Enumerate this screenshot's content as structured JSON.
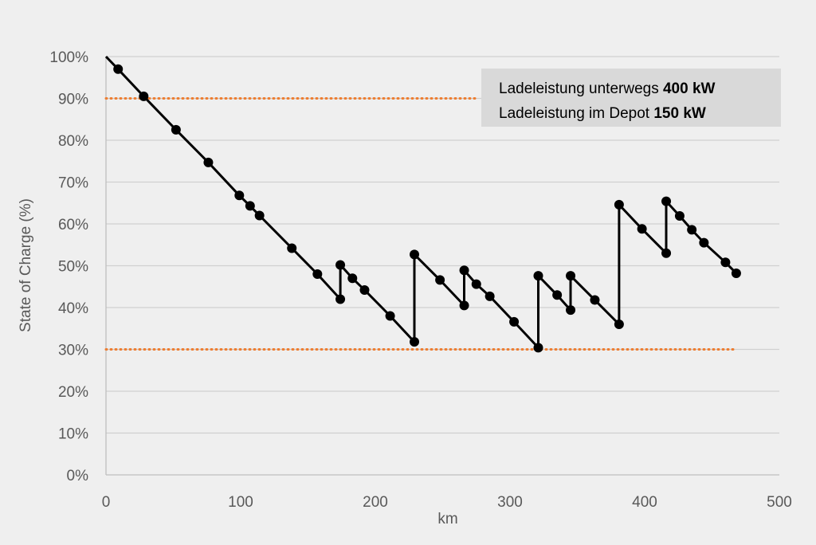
{
  "chart_data": {
    "type": "line",
    "xlabel": "km",
    "ylabel": "State of Charge (%)",
    "xlim": [
      0,
      500
    ],
    "ylim": [
      0,
      100
    ],
    "x_ticks": [
      "0",
      "100",
      "200",
      "300",
      "400",
      "500"
    ],
    "y_ticks": [
      "0%",
      "10%",
      "20%",
      "30%",
      "40%",
      "50%",
      "60%",
      "70%",
      "80%",
      "90%",
      "100%"
    ],
    "grid": true,
    "legend": {
      "placement": "top-right",
      "line1_text": "Ladeleistung unterwegs ",
      "line1_value": "400 kW",
      "line2_text": "Ladeleistung im Depot ",
      "line2_value": "150 kW"
    },
    "reference_lines": [
      {
        "y": 90,
        "x_range": [
          0,
          276
        ],
        "style": "dotted",
        "color": "#ed7d31"
      },
      {
        "y": 30,
        "x_range": [
          0,
          466
        ],
        "style": "dotted",
        "color": "#ed7d31"
      }
    ],
    "series": [
      {
        "color": "#000000",
        "line": [
          [
            0,
            100
          ],
          [
            9,
            97
          ],
          [
            28,
            90.5
          ],
          [
            52,
            82.5
          ],
          [
            76,
            74.7
          ],
          [
            99,
            66.8
          ],
          [
            107,
            64.3
          ],
          [
            114,
            62
          ],
          [
            138,
            54.2
          ],
          [
            157,
            48
          ],
          [
            174,
            42
          ],
          [
            174,
            50.2
          ],
          [
            183,
            47
          ],
          [
            192,
            44.2
          ],
          [
            211,
            38
          ],
          [
            229,
            31.8
          ],
          [
            229,
            52.7
          ],
          [
            248,
            46.6
          ],
          [
            266,
            40.5
          ],
          [
            266,
            48.9
          ],
          [
            275,
            45.6
          ],
          [
            285,
            42.7
          ],
          [
            303,
            36.6
          ],
          [
            321,
            30.4
          ],
          [
            321,
            47.6
          ],
          [
            335,
            43
          ],
          [
            345,
            39.4
          ],
          [
            345,
            47.6
          ],
          [
            363,
            41.8
          ],
          [
            381,
            36
          ],
          [
            381,
            64.6
          ],
          [
            398,
            58.8
          ],
          [
            416,
            53
          ],
          [
            416,
            65.4
          ],
          [
            426,
            61.9
          ],
          [
            435,
            58.6
          ],
          [
            444,
            55.5
          ],
          [
            460,
            50.8
          ],
          [
            468,
            48.2
          ]
        ],
        "markers": [
          [
            9,
            97
          ],
          [
            28,
            90.5
          ],
          [
            52,
            82.5
          ],
          [
            76,
            74.7
          ],
          [
            99,
            66.8
          ],
          [
            107,
            64.3
          ],
          [
            114,
            62
          ],
          [
            138,
            54.2
          ],
          [
            157,
            48
          ],
          [
            174,
            42
          ],
          [
            174,
            50.2
          ],
          [
            183,
            47
          ],
          [
            192,
            44.2
          ],
          [
            211,
            38
          ],
          [
            229,
            31.8
          ],
          [
            229,
            52.7
          ],
          [
            248,
            46.6
          ],
          [
            266,
            40.5
          ],
          [
            266,
            48.9
          ],
          [
            275,
            45.6
          ],
          [
            285,
            42.7
          ],
          [
            303,
            36.6
          ],
          [
            321,
            30.4
          ],
          [
            321,
            47.6
          ],
          [
            335,
            43
          ],
          [
            345,
            39.4
          ],
          [
            345,
            47.6
          ],
          [
            363,
            41.8
          ],
          [
            381,
            36
          ],
          [
            381,
            64.6
          ],
          [
            398,
            58.8
          ],
          [
            416,
            53
          ],
          [
            416,
            65.4
          ],
          [
            426,
            61.9
          ],
          [
            435,
            58.6
          ],
          [
            444,
            55.5
          ],
          [
            460,
            50.8
          ],
          [
            468,
            48.2
          ]
        ]
      }
    ]
  }
}
